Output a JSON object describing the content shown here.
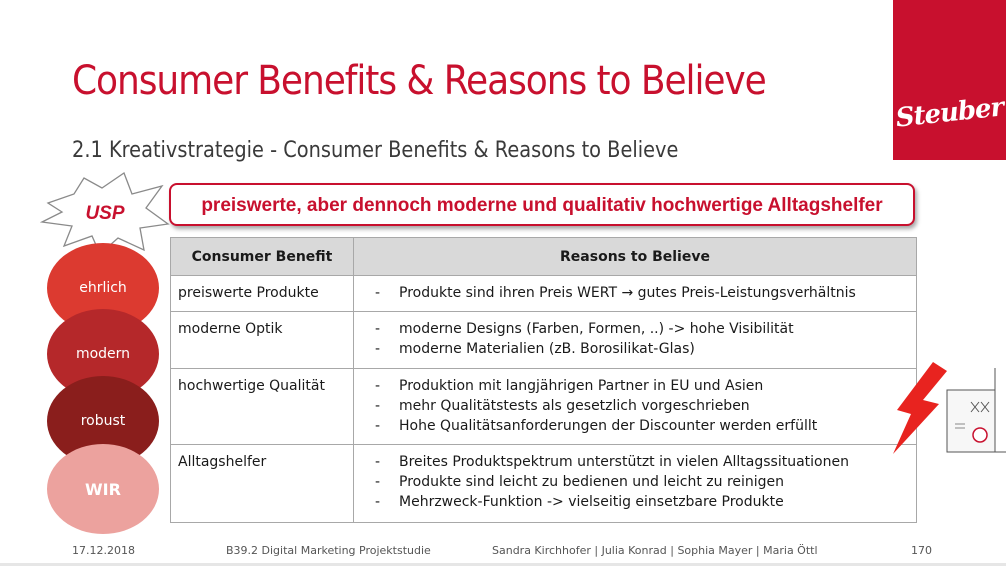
{
  "slide": {
    "title": "Consumer Benefits & Reasons to Believe",
    "subtitle": "2.1 Kreativstrategie - Consumer Benefits & Reasons to Believe",
    "logo_text": "Steuber",
    "usp_label": "USP",
    "usp_statement": "preiswerte, aber dennoch moderne und qualitativ hochwertige Alltagshelfer",
    "values": [
      "ehrlich",
      "modern",
      "robust",
      "WIR"
    ],
    "accent_color": "#c8102e"
  },
  "table": {
    "headers": [
      "Consumer Benefit",
      "Reasons to Believe"
    ],
    "rows": [
      {
        "benefit": "preiswerte Produkte",
        "reasons": [
          "Produkte sind ihren Preis WERT →  gutes Preis-Leistungsverhältnis"
        ]
      },
      {
        "benefit": "moderne Optik",
        "reasons": [
          "moderne Designs (Farben, Formen, ..) -> hohe Visibilität",
          "moderne Materialien (zB. Borosilikat-Glas)"
        ]
      },
      {
        "benefit": "hochwertige Qualität",
        "reasons": [
          "Produktion mit langjährigen Partner in EU und Asien",
          "mehr Qualitätstests als gesetzlich vorgeschrieben",
          "Hohe Qualitätsanforderungen der Discounter werden erfüllt"
        ]
      },
      {
        "benefit": "Alltagshelfer",
        "reasons": [
          "Breites Produktspektrum unterstützt in vielen Alltagssituationen",
          "Produkte sind leicht zu bedienen und leicht zu reinigen",
          "Mehrzweck-Funktion -> vielseitig einsetzbare Produkte"
        ]
      }
    ],
    "bullet": "-"
  },
  "footer": {
    "date": "17.12.2018",
    "course": "B39.2 Digital Marketing Projektstudie",
    "authors": "Sandra Kirchhofer | Julia Konrad | Sophia Mayer | Maria Öttl",
    "page": "170"
  }
}
